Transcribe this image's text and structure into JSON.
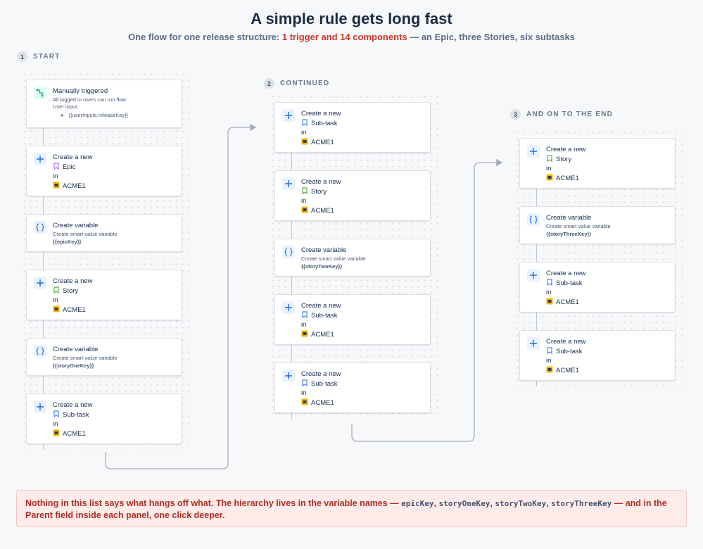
{
  "header": {
    "title": "A simple rule gets long fast",
    "subtitle": [
      "One flow for one release structure:",
      "1 trigger and 14 components",
      "— an Epic, three Stories, six subtasks"
    ]
  },
  "columns": [
    {
      "number": "1",
      "label": "START",
      "cards": [
        {
          "kind": "trigger",
          "title": "Manually triggered",
          "lines": [
            "All logged in users can run flow.",
            "User input:"
          ],
          "inputs": [
            "{{userInputs.releaseKey}}"
          ]
        },
        {
          "kind": "create",
          "title": "Create a new",
          "issue_type": {
            "name": "Epic",
            "color": "#b46ee6"
          },
          "in": "in",
          "project": "ACME1"
        },
        {
          "kind": "variable",
          "title": "Create variable",
          "description": "Create smart value variable",
          "name": "{{epicKey}}"
        },
        {
          "kind": "create",
          "title": "Create a new",
          "issue_type": {
            "name": "Story",
            "color": "#5ab04a"
          },
          "in": "in",
          "project": "ACME1"
        },
        {
          "kind": "variable",
          "title": "Create variable",
          "description": "Create smart value variable",
          "name": "{{storyOneKey}}"
        },
        {
          "kind": "create",
          "title": "Create a new",
          "issue_type": {
            "name": "Sub-task",
            "color": "#4688ec"
          },
          "in": "in",
          "project": "ACME1"
        }
      ]
    },
    {
      "number": "2",
      "label": "CONTINUED",
      "cards": [
        {
          "kind": "create",
          "title": "Create a new",
          "issue_type": {
            "name": "Sub-task",
            "color": "#4688ec"
          },
          "in": "in",
          "project": "ACME1"
        },
        {
          "kind": "create",
          "title": "Create a new",
          "issue_type": {
            "name": "Story",
            "color": "#5ab04a"
          },
          "in": "in",
          "project": "ACME1"
        },
        {
          "kind": "variable",
          "title": "Create variable",
          "description": "Create smart value variable",
          "name": "{{storyTwoKey}}"
        },
        {
          "kind": "create",
          "title": "Create a new",
          "issue_type": {
            "name": "Sub-task",
            "color": "#4688ec"
          },
          "in": "in",
          "project": "ACME1"
        },
        {
          "kind": "create",
          "title": "Create a new",
          "issue_type": {
            "name": "Sub-task",
            "color": "#4688ec"
          },
          "in": "in",
          "project": "ACME1"
        }
      ]
    },
    {
      "number": "3",
      "label": "AND ON TO THE END",
      "cards": [
        {
          "kind": "create",
          "title": "Create a new",
          "issue_type": {
            "name": "Story",
            "color": "#5ab04a"
          },
          "in": "in",
          "project": "ACME1"
        },
        {
          "kind": "variable",
          "title": "Create variable",
          "description": "Create smart value variable",
          "name": "{{storyThreeKey}}"
        },
        {
          "kind": "create",
          "title": "Create a new",
          "issue_type": {
            "name": "Sub-task",
            "color": "#4688ec"
          },
          "in": "in",
          "project": "ACME1"
        },
        {
          "kind": "create",
          "title": "Create a new",
          "issue_type": {
            "name": "Sub-task",
            "color": "#4688ec"
          },
          "in": "in",
          "project": "ACME1"
        }
      ]
    }
  ],
  "note": [
    {
      "text": "Nothing in this list says what hangs off what. The hierarchy lives in the variable names —"
    },
    {
      "code": "epicKey"
    },
    {
      "text": ","
    },
    {
      "code": "storyOneKey"
    },
    {
      "text": ","
    },
    {
      "code": "storyTwoKey"
    },
    {
      "text": ","
    },
    {
      "code": "storyThreeKey"
    },
    {
      "text": "— and in the Parent field inside each panel, one click deeper."
    }
  ]
}
